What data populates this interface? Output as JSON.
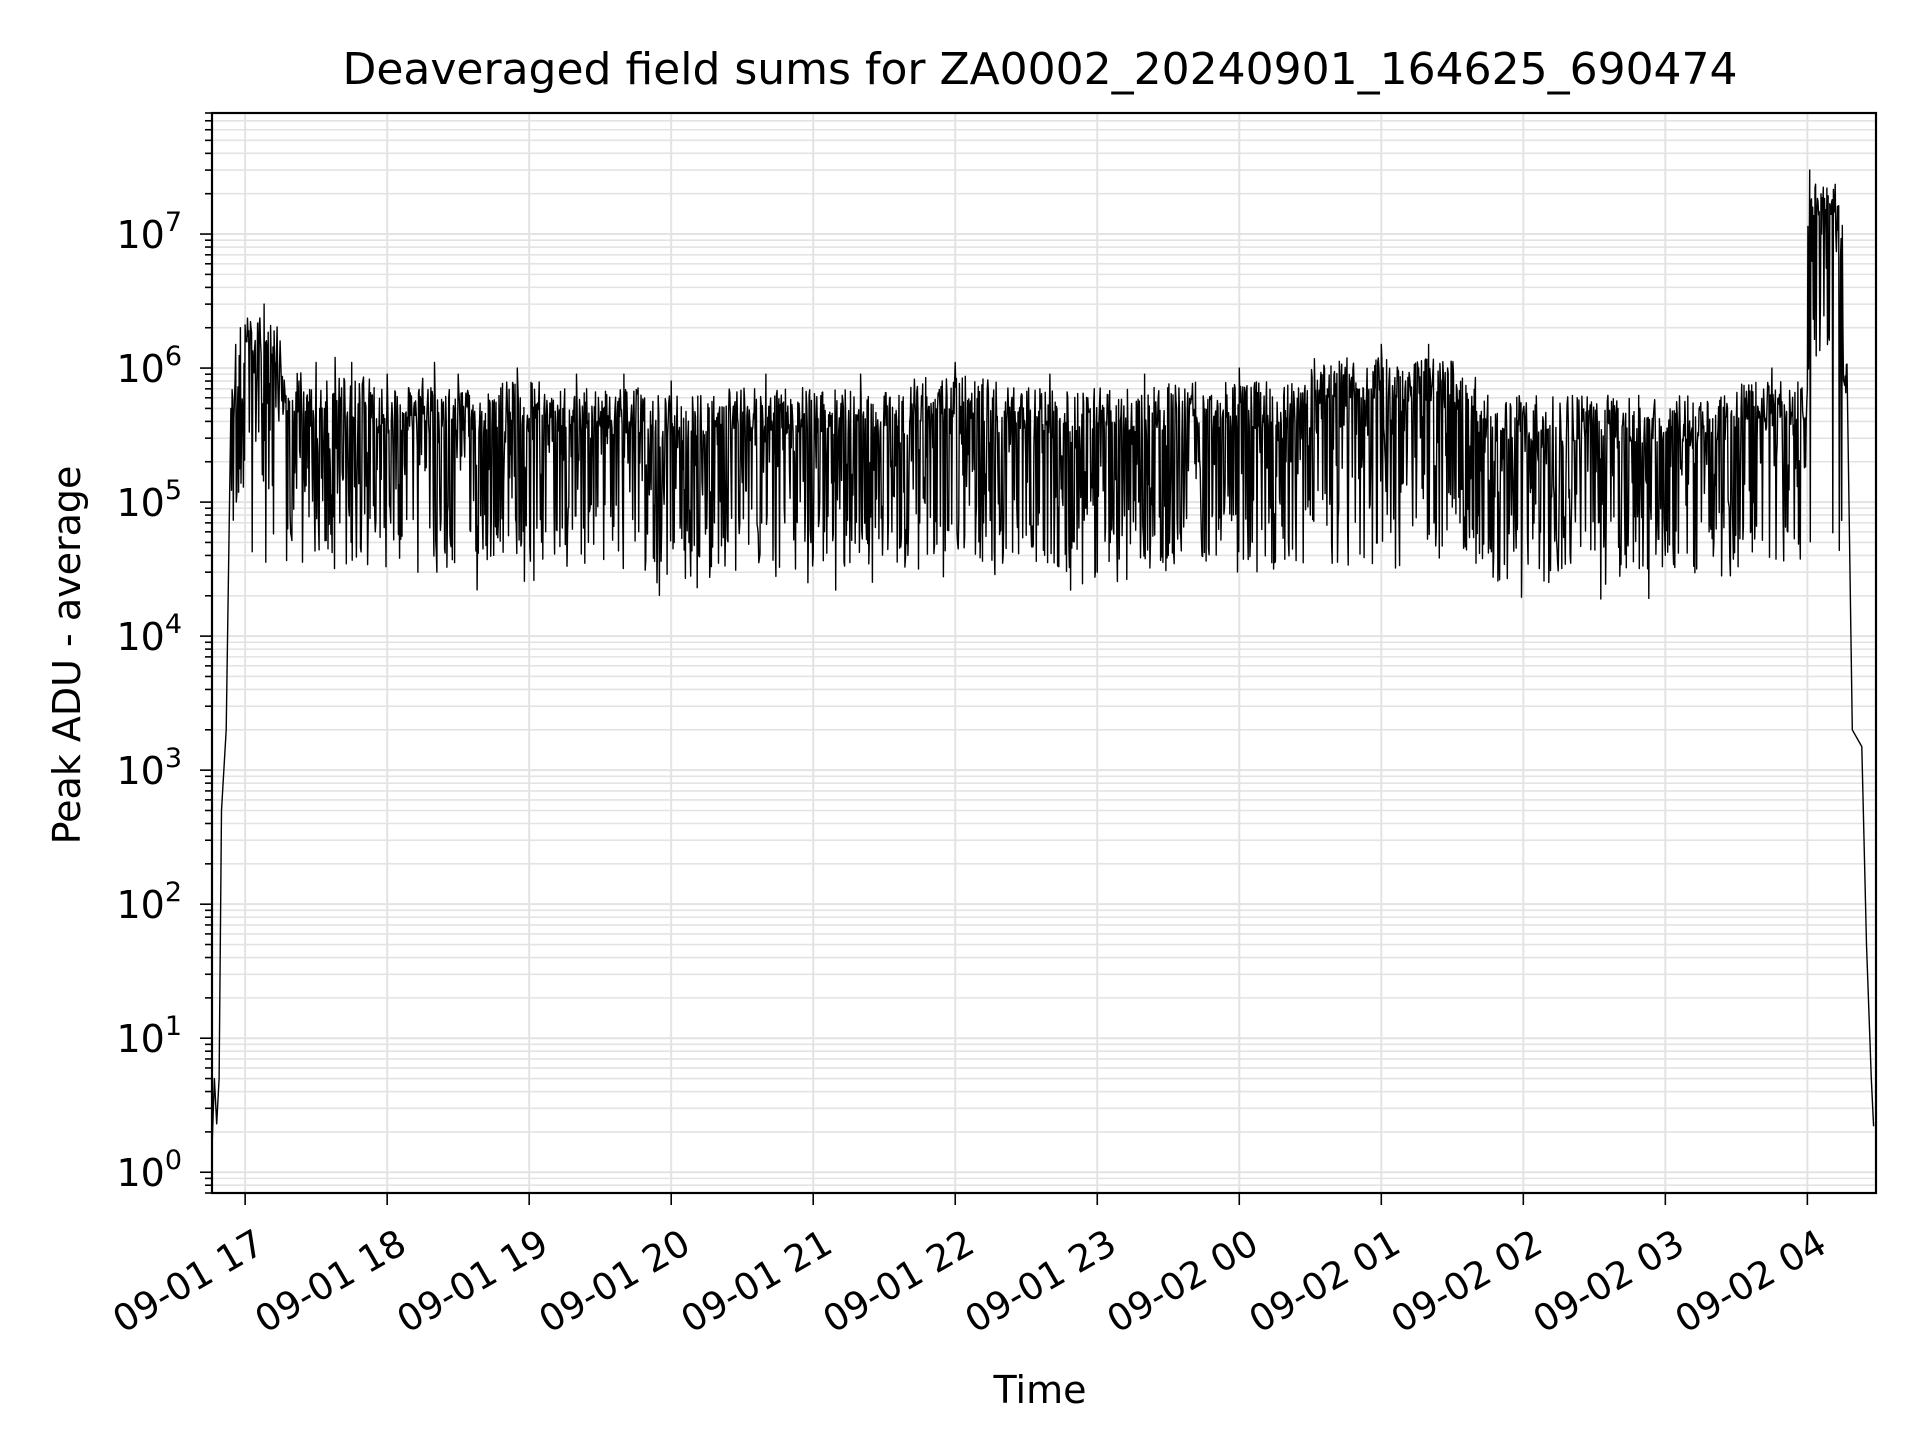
{
  "chart_data": {
    "type": "line",
    "title": "Deaveraged field sums for ZA0002_20240901_164625_690474",
    "xlabel": "Time",
    "ylabel": "Peak ADU - average",
    "yscale": "log",
    "ylim": [
      0.7,
      80000000
    ],
    "xlim": [
      "2024-09-01 16:46",
      "2024-09-02 04:29"
    ],
    "x_ticks": [
      {
        "t": "2024-09-01 17:00",
        "label": "09-01 17"
      },
      {
        "t": "2024-09-01 18:00",
        "label": "09-01 18"
      },
      {
        "t": "2024-09-01 19:00",
        "label": "09-01 19"
      },
      {
        "t": "2024-09-01 20:00",
        "label": "09-01 20"
      },
      {
        "t": "2024-09-01 21:00",
        "label": "09-01 21"
      },
      {
        "t": "2024-09-01 22:00",
        "label": "09-01 22"
      },
      {
        "t": "2024-09-01 23:00",
        "label": "09-01 23"
      },
      {
        "t": "2024-09-02 00:00",
        "label": "09-02 00"
      },
      {
        "t": "2024-09-02 01:00",
        "label": "09-02 01"
      },
      {
        "t": "2024-09-02 02:00",
        "label": "09-02 02"
      },
      {
        "t": "2024-09-02 03:00",
        "label": "09-02 03"
      },
      {
        "t": "2024-09-02 04:00",
        "label": "09-02 04"
      }
    ],
    "y_ticks": [
      {
        "exp": 0,
        "base": "10",
        "sup": "0"
      },
      {
        "exp": 1,
        "base": "10",
        "sup": "1"
      },
      {
        "exp": 2,
        "base": "10",
        "sup": "2"
      },
      {
        "exp": 3,
        "base": "10",
        "sup": "3"
      },
      {
        "exp": 4,
        "base": "10",
        "sup": "4"
      },
      {
        "exp": 5,
        "base": "10",
        "sup": "5"
      },
      {
        "exp": 6,
        "base": "10",
        "sup": "6"
      },
      {
        "exp": 7,
        "base": "10",
        "sup": "7"
      }
    ],
    "grid": true,
    "series": [
      {
        "color": "#000000",
        "points": [
          [
            "2024-09-01 16:46",
            1.5
          ],
          [
            "2024-09-01 16:47",
            5
          ],
          [
            "2024-09-01 16:48",
            2.3
          ],
          [
            "2024-09-01 16:49",
            5
          ],
          [
            "2024-09-01 16:50",
            500
          ],
          [
            "2024-09-01 16:52",
            2000
          ],
          [
            "2024-09-01 16:54",
            500000
          ],
          [
            "2024-09-01 16:56",
            1500000
          ],
          [
            "2024-09-01 16:58",
            2000000
          ],
          [
            "2024-09-01 17:00",
            2100000
          ],
          [
            "2024-09-01 17:08",
            3000000
          ],
          [
            "2024-09-01 17:15",
            1200000
          ],
          [
            "2024-09-01 17:25",
            170000
          ],
          [
            "2024-09-01 17:30",
            1100000
          ],
          [
            "2024-09-01 17:38",
            1200000
          ],
          [
            "2024-09-01 17:40",
            70000
          ],
          [
            "2024-09-01 17:45",
            1100000
          ],
          [
            "2024-09-01 17:55",
            60000
          ],
          [
            "2024-09-01 18:00",
            900000
          ],
          [
            "2024-09-01 18:13",
            30000
          ],
          [
            "2024-09-01 18:20",
            1100000
          ],
          [
            "2024-09-01 18:21",
            30000
          ],
          [
            "2024-09-01 18:30",
            900000
          ],
          [
            "2024-09-01 18:45",
            40000
          ],
          [
            "2024-09-01 18:55",
            1000000
          ],
          [
            "2024-09-01 19:07",
            60000
          ],
          [
            "2024-09-01 19:20",
            900000
          ],
          [
            "2024-09-01 19:25",
            50000
          ],
          [
            "2024-09-01 19:40",
            900000
          ],
          [
            "2024-09-01 19:54",
            25000
          ],
          [
            "2024-09-01 20:00",
            800000
          ],
          [
            "2024-09-01 20:20",
            35000
          ],
          [
            "2024-09-01 20:40",
            900000
          ],
          [
            "2024-09-01 21:00",
            40000
          ],
          [
            "2024-09-01 21:20",
            900000
          ],
          [
            "2024-09-01 21:40",
            40000
          ],
          [
            "2024-09-01 22:00",
            1100000
          ],
          [
            "2024-09-01 22:20",
            35000
          ],
          [
            "2024-09-01 22:40",
            900000
          ],
          [
            "2024-09-01 23:00",
            30000
          ],
          [
            "2024-09-01 23:20",
            900000
          ],
          [
            "2024-09-01 23:30",
            40000
          ],
          [
            "2024-09-02 00:00",
            1000000
          ],
          [
            "2024-09-02 00:30",
            80000
          ],
          [
            "2024-09-02 01:00",
            1500000
          ],
          [
            "2024-09-02 01:20",
            1500000
          ],
          [
            "2024-09-02 01:40",
            35000
          ],
          [
            "2024-09-02 02:00",
            500000
          ],
          [
            "2024-09-02 02:20",
            35000
          ],
          [
            "2024-09-02 02:40",
            500000
          ],
          [
            "2024-09-02 03:00",
            40000
          ],
          [
            "2024-09-02 03:30",
            400000
          ],
          [
            "2024-09-02 03:45",
            1000000
          ],
          [
            "2024-09-02 04:00",
            700000
          ],
          [
            "2024-09-02 04:01",
            30000000
          ],
          [
            "2024-09-02 04:15",
            2000000
          ],
          [
            "2024-09-02 04:17",
            500000
          ],
          [
            "2024-09-02 04:19",
            2000
          ],
          [
            "2024-09-02 04:23",
            1500
          ],
          [
            "2024-09-02 04:25",
            50
          ],
          [
            "2024-09-02 04:27",
            5
          ],
          [
            "2024-09-02 04:28",
            2.2
          ]
        ]
      }
    ]
  }
}
